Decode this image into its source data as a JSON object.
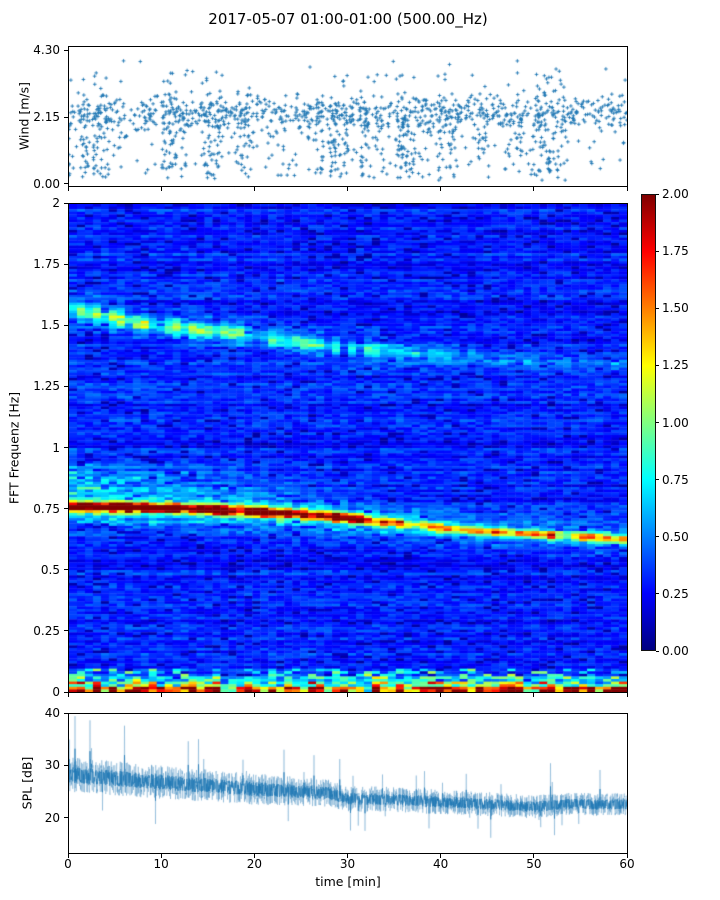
{
  "title": "2017-05-07 01:00-01:00 (500.00_Hz)",
  "colors": {
    "series": "#1f77b4",
    "axes": "#000000",
    "background": "#ffffff",
    "colormap_jet_stops_low_to_high": [
      "#000080",
      "#0000ff",
      "#0080ff",
      "#00ffff",
      "#80ff80",
      "#ffff00",
      "#ff8000",
      "#ff0000",
      "#800000"
    ]
  },
  "chart_data": [
    {
      "type": "scatter",
      "name": "wind-speed",
      "ylabel": "Wind [m/s]",
      "ylim": [
        0.0,
        4.3
      ],
      "yticks": [
        0.0,
        2.15,
        4.3
      ],
      "ytick_labels": [
        "0.00",
        "2.15",
        "4.30"
      ],
      "xlim": [
        0,
        60
      ],
      "marker": "plus",
      "color": "#1f77b4",
      "n_points": 1600,
      "mean_level": 2.35,
      "dense_band": [
        2.0,
        2.8
      ],
      "low_tail_min": 0.12,
      "rare_high_max": 4.15,
      "seed": 42
    },
    {
      "type": "heatmap",
      "name": "fft-spectrogram",
      "ylabel": "FFT Frequenz [Hz]",
      "ylim": [
        0,
        2
      ],
      "yticks": [
        0,
        0.25,
        0.5,
        0.75,
        1,
        1.25,
        1.5,
        1.75,
        2
      ],
      "ytick_labels": [
        "0",
        "0.25",
        "0.5",
        "0.75",
        "1",
        "1.25",
        "1.5",
        "1.75",
        "2"
      ],
      "xlim": [
        0,
        60
      ],
      "colormap": "jet",
      "clim": [
        0.0,
        2.0
      ],
      "colorbar_ticks": [
        0.0,
        0.25,
        0.5,
        0.75,
        1.0,
        1.25,
        1.5,
        1.75,
        2.0
      ],
      "colorbar_tick_labels": [
        "0.00",
        "0.25",
        "0.50",
        "0.75",
        "1.00",
        "1.25",
        "1.50",
        "1.75",
        "2.00"
      ],
      "background_level": 0.3,
      "bands": [
        {
          "name": "main-ridge",
          "freq_track": [
            [
              0,
              0.76
            ],
            [
              8,
              0.755
            ],
            [
              15,
              0.748
            ],
            [
              22,
              0.735
            ],
            [
              28,
              0.72
            ],
            [
              33,
              0.7
            ],
            [
              40,
              0.672
            ],
            [
              48,
              0.65
            ],
            [
              55,
              0.635
            ],
            [
              60,
              0.625
            ]
          ],
          "intensity_track": [
            [
              0,
              1.85
            ],
            [
              12,
              1.9
            ],
            [
              22,
              1.85
            ],
            [
              28,
              1.7
            ],
            [
              33,
              1.45
            ],
            [
              38,
              1.05
            ],
            [
              45,
              0.95
            ],
            [
              52,
              1.05
            ],
            [
              60,
              0.95
            ]
          ],
          "core_width": 0.013,
          "halo_width": 0.05,
          "halo_intensity": 0.55
        },
        {
          "name": "upper-band",
          "freq_track": [
            [
              0,
              1.57
            ],
            [
              8,
              1.51
            ],
            [
              17,
              1.47
            ],
            [
              25,
              1.43
            ],
            [
              30,
              1.41
            ],
            [
              40,
              1.38
            ],
            [
              50,
              1.36
            ],
            [
              60,
              1.35
            ]
          ],
          "intensity_track": [
            [
              0,
              0.62
            ],
            [
              10,
              0.58
            ],
            [
              20,
              0.5
            ],
            [
              30,
              0.38
            ],
            [
              40,
              0.26
            ],
            [
              50,
              0.2
            ],
            [
              60,
              0.16
            ]
          ],
          "core_width": 0.02,
          "halo_width": 0.05,
          "halo_intensity": 0.5
        },
        {
          "name": "low-frequency-band",
          "freq_max": 0.06,
          "hot_freq_max": 0.022,
          "intensity": 1.5
        }
      ],
      "seed": 7
    },
    {
      "type": "line",
      "name": "spl",
      "ylabel": "SPL [dB]",
      "ylim": [
        13.3,
        40
      ],
      "yticks": [
        20,
        30,
        40
      ],
      "ytick_labels": [
        "20",
        "30",
        "40"
      ],
      "xlabel": "time [min]",
      "xlim": [
        0,
        60
      ],
      "xticks": [
        0,
        10,
        20,
        30,
        40,
        50,
        60
      ],
      "xtick_labels": [
        "0",
        "10",
        "20",
        "30",
        "40",
        "50",
        "60"
      ],
      "color": "#1f77b4",
      "trend": [
        [
          0,
          28.3
        ],
        [
          4,
          27.8
        ],
        [
          8,
          27.2
        ],
        [
          12,
          26.6
        ],
        [
          16,
          26.2
        ],
        [
          20,
          25.6
        ],
        [
          24,
          25.2
        ],
        [
          28,
          24.8
        ],
        [
          30,
          23.8
        ],
        [
          34,
          23.6
        ],
        [
          38,
          23.3
        ],
        [
          42,
          23.0
        ],
        [
          46,
          22.6
        ],
        [
          50,
          22.2
        ],
        [
          54,
          22.8
        ],
        [
          57,
          22.6
        ],
        [
          60,
          22.7
        ]
      ],
      "noise_amp": [
        [
          0,
          3.4
        ],
        [
          20,
          3.0
        ],
        [
          30,
          2.5
        ],
        [
          60,
          2.1
        ]
      ],
      "seed": 99
    }
  ]
}
